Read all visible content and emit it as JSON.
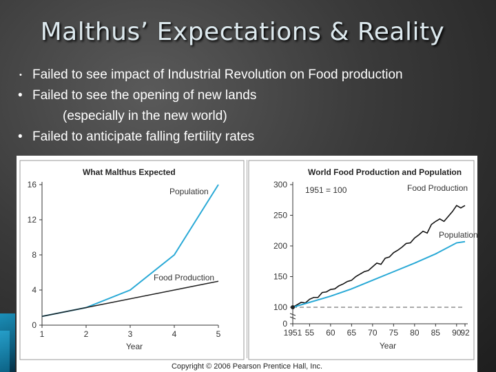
{
  "slide": {
    "title": "Malthus’ Expectations & Reality",
    "bullets": [
      "Failed to see impact of Industrial Revolution on Food production",
      "Failed to see the opening of new lands",
      "(especially in the new world)",
      "Failed to anticipate falling fertility rates"
    ],
    "bullet_symbol": "•",
    "copyright": "Copyright © 2006 Pearson Prentice Hall, Inc."
  },
  "chart_data": [
    {
      "type": "line",
      "title": "What Malthus Expected",
      "xlabel": "Year",
      "ylabel": "",
      "x": [
        1,
        2,
        3,
        4,
        5
      ],
      "xticks": [
        "1",
        "2",
        "3",
        "4",
        "5"
      ],
      "yticks": [
        "0",
        "4",
        "8",
        "12",
        "16"
      ],
      "xlim": [
        1,
        5
      ],
      "ylim": [
        0,
        16
      ],
      "series": [
        {
          "name": "Population",
          "color": "#29a9d6",
          "values": [
            1,
            2,
            4,
            8,
            16
          ]
        },
        {
          "name": "Food Production",
          "color": "#222222",
          "values": [
            1,
            2,
            3,
            4,
            5
          ]
        }
      ],
      "grid": false
    },
    {
      "type": "line",
      "title": "World Food Production and Population",
      "annotation": "1951 = 100",
      "xlabel": "Year",
      "ylabel": "",
      "xticks": [
        "1951",
        "55",
        "60",
        "65",
        "70",
        "75",
        "80",
        "85",
        "90",
        "92"
      ],
      "xtick_years": [
        1951,
        1955,
        1960,
        1965,
        1970,
        1975,
        1980,
        1985,
        1990,
        1992
      ],
      "yticks": [
        "0",
        "100",
        "150",
        "200",
        "250",
        "300"
      ],
      "ytick_values": [
        0,
        100,
        150,
        200,
        250,
        300
      ],
      "axis_break": true,
      "xlim": [
        1951,
        1992
      ],
      "ylim": [
        90,
        310
      ],
      "reference_value": 100,
      "series": [
        {
          "name": "Food Production",
          "color": "#111111",
          "x": [
            1951,
            1952,
            1953,
            1954,
            1955,
            1956,
            1957,
            1958,
            1959,
            1960,
            1961,
            1962,
            1963,
            1964,
            1965,
            1966,
            1967,
            1968,
            1969,
            1970,
            1971,
            1972,
            1973,
            1974,
            1975,
            1976,
            1977,
            1978,
            1979,
            1980,
            1981,
            1982,
            1983,
            1984,
            1985,
            1986,
            1987,
            1988,
            1989,
            1990,
            1991,
            1992
          ],
          "values": [
            100,
            104,
            108,
            107,
            113,
            116,
            116,
            124,
            125,
            129,
            130,
            135,
            138,
            142,
            144,
            150,
            154,
            158,
            160,
            166,
            172,
            170,
            180,
            182,
            189,
            193,
            198,
            204,
            205,
            213,
            218,
            224,
            221,
            235,
            240,
            244,
            240,
            248,
            256,
            266,
            262,
            266
          ]
        },
        {
          "name": "Population",
          "color": "#29a9d6",
          "x": [
            1951,
            1955,
            1960,
            1965,
            1970,
            1975,
            1980,
            1985,
            1990,
            1992
          ],
          "values": [
            100,
            108,
            118,
            130,
            144,
            158,
            172,
            187,
            205,
            207
          ]
        }
      ],
      "grid": false
    }
  ]
}
